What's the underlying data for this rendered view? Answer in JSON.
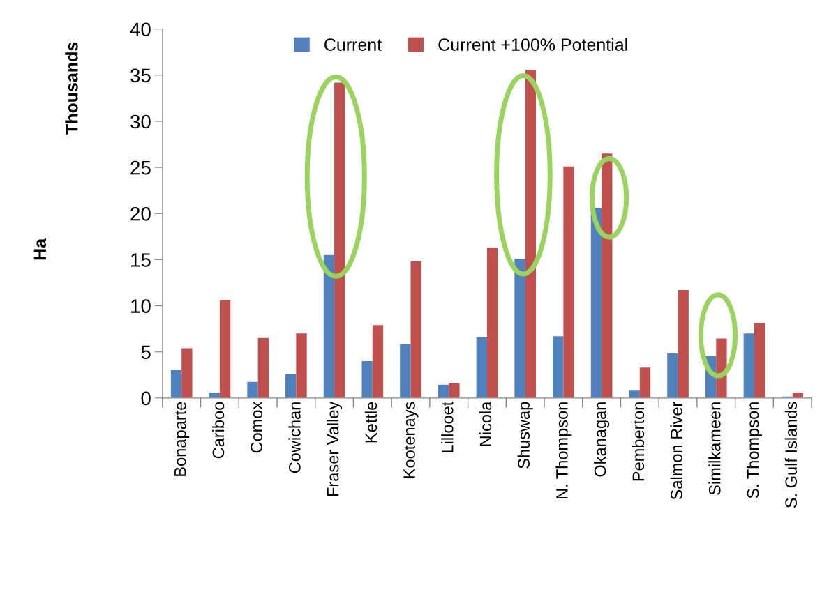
{
  "chart_data": {
    "type": "bar",
    "ylabel": "Thousands",
    "annotations": [
      "Ha"
    ],
    "categories": [
      "Bonaparte",
      "Cariboo",
      "Comox",
      "Cowichan",
      "Fraser Valley",
      "Kettle",
      "Kootenays",
      "Lillooet",
      "Nicola",
      "Shuswap",
      "N. Thompson",
      "Okanagan",
      "Pemberton",
      "Salmon River",
      "Similkameen",
      "S. Thompson",
      "S. Gulf Islands"
    ],
    "series": [
      {
        "name": "Current",
        "color": "#4f81bd",
        "values": [
          3.05,
          0.6,
          1.75,
          2.6,
          15.5,
          4.0,
          5.85,
          1.45,
          6.6,
          15.1,
          6.7,
          20.6,
          0.8,
          4.85,
          4.55,
          7.0,
          0.15
        ]
      },
      {
        "name": "Current +100% Potential",
        "color": "#c0504d",
        "values": [
          5.4,
          10.6,
          6.5,
          7.0,
          34.2,
          7.9,
          14.8,
          1.6,
          16.3,
          35.6,
          25.1,
          26.5,
          3.3,
          11.7,
          6.45,
          8.1,
          0.6
        ]
      }
    ],
    "ylim": [
      0,
      40
    ],
    "yticks": [
      0,
      5,
      10,
      15,
      20,
      25,
      30,
      35,
      40
    ],
    "grid": false,
    "legend": "top"
  }
}
